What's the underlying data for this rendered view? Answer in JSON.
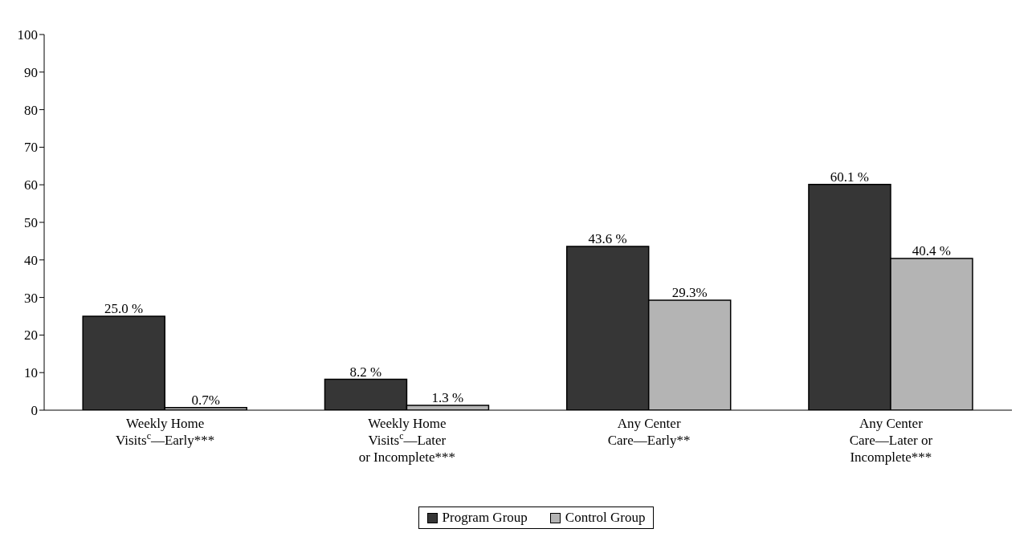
{
  "chart_data": {
    "type": "bar",
    "categories": [
      "Weekly Home\nVisits$^{c}$—Early***",
      "Weekly Home\nVisits$^{c}$—Later\nor Incomplete***",
      "Any Center\nCare—Early**",
      "Any Center\nCare—Later or\nIncomplete***"
    ],
    "series": [
      {
        "name": "Program Group",
        "color": "#363636",
        "values": [
          25.0,
          8.2,
          43.6,
          60.1
        ],
        "value_labels": [
          "25.0 %",
          "8.2 %",
          "43.6 %",
          "60.1 %"
        ]
      },
      {
        "name": "Control Group",
        "color": "#b4b4b4",
        "values": [
          0.7,
          1.3,
          29.3,
          40.4
        ],
        "value_labels": [
          "0.7%",
          "1.3 %",
          "29.3%",
          "40.4 %"
        ]
      }
    ],
    "ylim": [
      0,
      100
    ],
    "yticks": [
      0,
      10,
      20,
      30,
      40,
      50,
      60,
      70,
      80,
      90,
      100
    ],
    "grid": false,
    "legend": "bottom"
  }
}
